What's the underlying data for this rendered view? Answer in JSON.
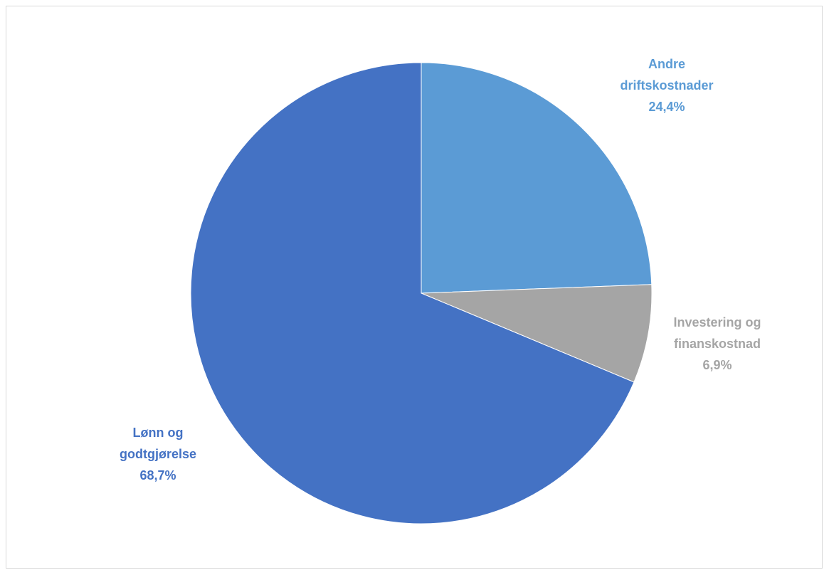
{
  "chart_data": {
    "type": "pie",
    "title": "",
    "slices": [
      {
        "label_lines": [
          "Andre",
          "driftskostnader"
        ],
        "value": 24.4,
        "value_text": "24,4%",
        "color": "#5b9bd5"
      },
      {
        "label_lines": [
          "Investering og",
          "finanskostnad"
        ],
        "value": 6.9,
        "value_text": "6,9%",
        "color": "#a5a5a5"
      },
      {
        "label_lines": [
          "Lønn og",
          "godtgjørelse"
        ],
        "value": 68.7,
        "value_text": "68,7%",
        "color": "#4472c4"
      }
    ],
    "start_angle_deg": 0,
    "direction": "clockwise",
    "legend": "none",
    "data_labels": "outside, category name and percentage, colored like slice"
  }
}
